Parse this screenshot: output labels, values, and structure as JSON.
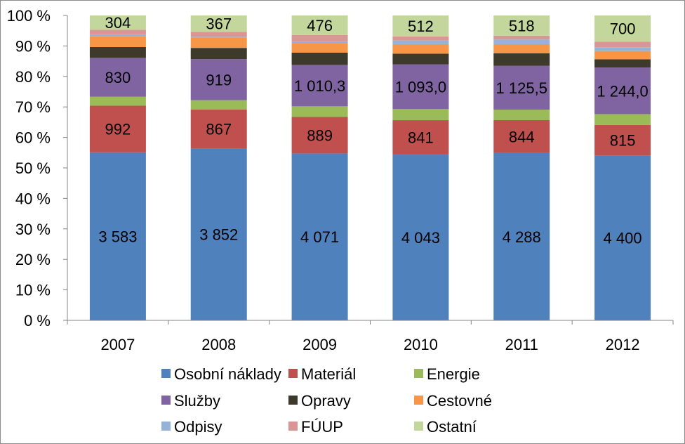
{
  "chart_data": {
    "type": "bar",
    "stacked": "percent",
    "categories": [
      "2007",
      "2008",
      "2009",
      "2010",
      "2011",
      "2012"
    ],
    "y_ticks": [
      "0 %",
      "10 %",
      "20 %",
      "30 %",
      "40 %",
      "50 %",
      "60 %",
      "70 %",
      "80 %",
      "90 %",
      "100 %"
    ],
    "ylim": [
      0,
      100
    ],
    "grid": false,
    "legend": "bottom",
    "series": [
      {
        "name": "Osobní náklady",
        "color": "#4f81bd",
        "values": [
          3583,
          3852,
          4071,
          4043,
          4288,
          4400
        ],
        "labels": [
          "3 583",
          "3 852",
          "4 071",
          "4 043",
          "4 288",
          "4 400"
        ]
      },
      {
        "name": "Materiál",
        "color": "#c0504d",
        "values": [
          992,
          867,
          889,
          841,
          844,
          815
        ],
        "labels": [
          "992",
          "867",
          "889",
          "841",
          "844",
          "815"
        ]
      },
      {
        "name": "Energie",
        "color": "#9bbb59",
        "values": [
          190,
          210,
          260,
          270,
          270,
          290
        ],
        "labels": null
      },
      {
        "name": "Služby",
        "color": "#8064a2",
        "values": [
          830,
          919,
          1010.3,
          1093.0,
          1125.5,
          1244.0
        ],
        "labels": [
          "830",
          "919",
          "1 010,3",
          "1 093,0",
          "1 125,5",
          "1 244,0"
        ]
      },
      {
        "name": "Opravy",
        "color": "#3d3a2b",
        "values": [
          230,
          250,
          300,
          260,
          320,
          220
        ],
        "labels": null
      },
      {
        "name": "Cestovné",
        "color": "#f79646",
        "values": [
          230,
          230,
          230,
          230,
          230,
          220
        ],
        "labels": null
      },
      {
        "name": "Odpisy",
        "color": "#95b3d7",
        "values": [
          30,
          20,
          40,
          100,
          120,
          100
        ],
        "labels": null
      },
      {
        "name": "FÚUP",
        "color": "#d99694",
        "values": [
          110,
          110,
          160,
          90,
          100,
          150
        ],
        "labels": null
      },
      {
        "name": "Ostatní",
        "color": "#c3d69b",
        "values": [
          304,
          367,
          476,
          512,
          518,
          700
        ],
        "labels": [
          "304",
          "367",
          "476",
          "512",
          "518",
          "700"
        ]
      }
    ]
  }
}
